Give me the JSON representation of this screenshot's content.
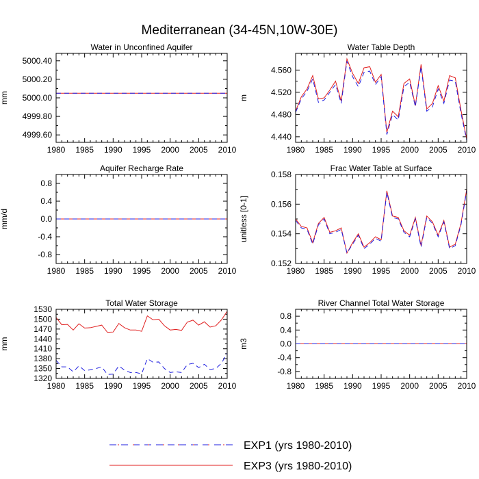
{
  "title": "Mediterranean (34-45N,10W-30E)",
  "legend": {
    "entries": [
      {
        "label": "EXP1 (yrs 1980-2010)",
        "color": "#1f1fe0",
        "dash": true
      },
      {
        "label": "EXP3 (yrs 1980-2010)",
        "color": "#e01f1f",
        "dash": false
      }
    ]
  },
  "chart_data": [
    {
      "type": "line",
      "title": "Water in Unconfined Aquifer",
      "ylabel": "mm",
      "xlabel": "",
      "xlim": [
        1980,
        2010
      ],
      "ylim": [
        4999.52,
        5000.48
      ],
      "xticks": [
        "1980",
        "1985",
        "1990",
        "1995",
        "2000",
        "2005",
        "2010"
      ],
      "yticks": [
        "4999.60",
        "4999.80",
        "5000.00",
        "5000.20",
        "5000.40"
      ],
      "ytick_values": [
        4999.6,
        4999.8,
        5000.0,
        5000.2,
        5000.4
      ],
      "x": [
        1980,
        2010
      ],
      "series": [
        {
          "name": "EXP1",
          "values": [
            5000.05,
            5000.05
          ]
        },
        {
          "name": "EXP3",
          "values": [
            5000.05,
            5000.05
          ]
        }
      ]
    },
    {
      "type": "line",
      "title": "Water Table Depth",
      "ylabel": "m",
      "xlabel": "",
      "xlim": [
        1980,
        2010
      ],
      "ylim": [
        4.43,
        4.59
      ],
      "xticks": [
        "1980",
        "1985",
        "1990",
        "1995",
        "2000",
        "2005",
        "2010"
      ],
      "yticks": [
        "4.440",
        "4.480",
        "4.520",
        "4.560"
      ],
      "ytick_values": [
        4.44,
        4.48,
        4.52,
        4.56
      ],
      "x": [
        1980,
        1981,
        1982,
        1983,
        1984,
        1985,
        1986,
        1987,
        1988,
        1989,
        1990,
        1991,
        1992,
        1993,
        1994,
        1995,
        1996,
        1997,
        1998,
        1999,
        2000,
        2001,
        2002,
        2003,
        2004,
        2005,
        2006,
        2007,
        2008,
        2009,
        2010
      ],
      "series": [
        {
          "name": "EXP1",
          "values": [
            4.484,
            4.508,
            4.522,
            4.544,
            4.502,
            4.506,
            4.52,
            4.534,
            4.5,
            4.576,
            4.548,
            4.53,
            4.556,
            4.558,
            4.534,
            4.548,
            4.444,
            4.48,
            4.47,
            4.53,
            4.538,
            4.494,
            4.566,
            4.486,
            4.494,
            4.526,
            4.5,
            4.542,
            4.54,
            4.482,
            4.434
          ]
        },
        {
          "name": "EXP3",
          "values": [
            4.486,
            4.512,
            4.526,
            4.55,
            4.508,
            4.51,
            4.524,
            4.54,
            4.504,
            4.58,
            4.554,
            4.536,
            4.564,
            4.566,
            4.538,
            4.552,
            4.448,
            4.486,
            4.476,
            4.536,
            4.544,
            4.496,
            4.57,
            4.49,
            4.5,
            4.532,
            4.504,
            4.55,
            4.546,
            4.488,
            4.436
          ]
        }
      ]
    },
    {
      "type": "line",
      "title": "Aquifer Recharge Rate",
      "ylabel": "mm/d",
      "xlabel": "",
      "xlim": [
        1980,
        2010
      ],
      "ylim": [
        -1.0,
        1.0
      ],
      "xticks": [
        "1980",
        "1985",
        "1990",
        "1995",
        "2000",
        "2005",
        "2010"
      ],
      "yticks": [
        "-0.8",
        "-0.4",
        "0.0",
        "0.4",
        "0.8"
      ],
      "ytick_values": [
        -0.8,
        -0.4,
        0.0,
        0.4,
        0.8
      ],
      "x": [
        1980,
        2010
      ],
      "series": [
        {
          "name": "EXP1",
          "values": [
            0.0,
            0.0
          ]
        },
        {
          "name": "EXP3",
          "values": [
            0.0,
            0.0
          ]
        }
      ]
    },
    {
      "type": "line",
      "title": "Frac Water Table at Surface",
      "ylabel": "unitless [0-1]",
      "xlabel": "",
      "xlim": [
        1980,
        2010
      ],
      "ylim": [
        0.152,
        0.158
      ],
      "xticks": [
        "1980",
        "1985",
        "1990",
        "1995",
        "2000",
        "2005",
        "2010"
      ],
      "yticks": [
        "0.152",
        "0.154",
        "0.156",
        "0.158"
      ],
      "ytick_values": [
        0.152,
        0.154,
        0.156,
        0.158
      ],
      "x": [
        1980,
        1981,
        1982,
        1983,
        1984,
        1985,
        1986,
        1987,
        1988,
        1989,
        1990,
        1991,
        1992,
        1993,
        1994,
        1995,
        1996,
        1997,
        1998,
        1999,
        2000,
        2001,
        2002,
        2003,
        2004,
        2005,
        2006,
        2007,
        2008,
        2009,
        2010
      ],
      "series": [
        {
          "name": "EXP1",
          "values": [
            0.1549,
            0.1544,
            0.1543,
            0.1533,
            0.1546,
            0.155,
            0.154,
            0.1541,
            0.1543,
            0.1527,
            0.1533,
            0.1539,
            0.153,
            0.1533,
            0.1537,
            0.1535,
            0.1568,
            0.1551,
            0.155,
            0.1541,
            0.1538,
            0.155,
            0.1531,
            0.1551,
            0.1547,
            0.1538,
            0.1548,
            0.153,
            0.1532,
            0.1546,
            0.1569
          ]
        },
        {
          "name": "EXP3",
          "values": [
            0.155,
            0.1545,
            0.1544,
            0.1534,
            0.1547,
            0.1551,
            0.1541,
            0.1542,
            0.1544,
            0.1527,
            0.1534,
            0.154,
            0.1531,
            0.1534,
            0.1538,
            0.1536,
            0.1569,
            0.1552,
            0.1551,
            0.1542,
            0.1539,
            0.1551,
            0.1532,
            0.1552,
            0.1548,
            0.1539,
            0.1549,
            0.1531,
            0.1533,
            0.1547,
            0.157
          ]
        }
      ]
    },
    {
      "type": "line",
      "title": "Total Water Storage",
      "ylabel": "mm",
      "xlabel": "",
      "xlim": [
        1980,
        2010
      ],
      "ylim": [
        1320,
        1530
      ],
      "xticks": [
        "1980",
        "1985",
        "1990",
        "1995",
        "2000",
        "2005",
        "2010"
      ],
      "yticks": [
        "1320",
        "1350",
        "1380",
        "1410",
        "1440",
        "1470",
        "1500",
        "1530"
      ],
      "ytick_values": [
        1320,
        1350,
        1380,
        1410,
        1440,
        1470,
        1500,
        1530
      ],
      "x": [
        1980,
        1981,
        1982,
        1983,
        1984,
        1985,
        1986,
        1987,
        1988,
        1989,
        1990,
        1991,
        1992,
        1993,
        1994,
        1995,
        1996,
        1997,
        1998,
        1999,
        2000,
        2001,
        2002,
        2003,
        2004,
        2005,
        2006,
        2007,
        2008,
        2009,
        2010
      ],
      "series": [
        {
          "name": "EXP1",
          "values": [
            1375,
            1355,
            1355,
            1340,
            1358,
            1344,
            1346,
            1350,
            1355,
            1332,
            1333,
            1358,
            1345,
            1338,
            1338,
            1334,
            1380,
            1369,
            1370,
            1350,
            1338,
            1340,
            1338,
            1362,
            1366,
            1353,
            1363,
            1347,
            1350,
            1366,
            1397
          ]
        },
        {
          "name": "EXP3",
          "values": [
            1505,
            1483,
            1484,
            1467,
            1486,
            1473,
            1474,
            1478,
            1482,
            1460,
            1461,
            1487,
            1474,
            1467,
            1467,
            1463,
            1510,
            1498,
            1500,
            1480,
            1467,
            1469,
            1466,
            1491,
            1497,
            1482,
            1492,
            1476,
            1480,
            1498,
            1524
          ]
        }
      ]
    },
    {
      "type": "line",
      "title": "River Channel Total Water Storage",
      "ylabel": "m3",
      "xlabel": "",
      "xlim": [
        1980,
        2010
      ],
      "ylim": [
        -1.0,
        1.0
      ],
      "xticks": [
        "1980",
        "1985",
        "1990",
        "1995",
        "2000",
        "2005",
        "2010"
      ],
      "yticks": [
        "-0.8",
        "-0.4",
        "0.0",
        "0.4",
        "0.8"
      ],
      "ytick_values": [
        -0.8,
        -0.4,
        0.0,
        0.4,
        0.8
      ],
      "x": [
        1980,
        2010
      ],
      "series": [
        {
          "name": "EXP1",
          "values": [
            0.0,
            0.0
          ]
        },
        {
          "name": "EXP3",
          "values": [
            0.0,
            0.0
          ]
        }
      ]
    }
  ]
}
